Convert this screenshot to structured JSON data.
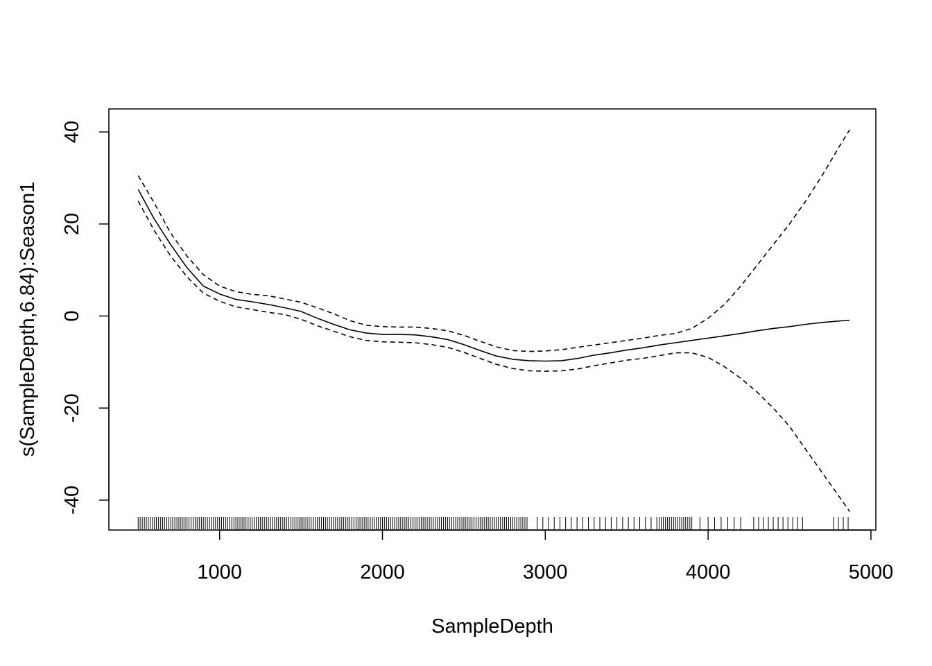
{
  "chart_data": {
    "type": "line",
    "title": "",
    "xlabel": "SampleDepth",
    "ylabel": "s(SampleDepth,6.84):Season1",
    "xlim": [
      320,
      5030
    ],
    "ylim": [
      -46.5,
      45
    ],
    "x_ticks": [
      1000,
      2000,
      3000,
      4000,
      5000
    ],
    "y_ticks": [
      -40,
      -20,
      0,
      20,
      40
    ],
    "grid": false,
    "legend": "none",
    "colors": {
      "line": "#000000",
      "background": "#ffffff"
    },
    "series": [
      {
        "style": "solid",
        "points": [
          [
            500,
            27.5
          ],
          [
            600,
            21
          ],
          [
            700,
            15.5
          ],
          [
            800,
            10.5
          ],
          [
            900,
            6.5
          ],
          [
            1000,
            4.8
          ],
          [
            1100,
            3.6
          ],
          [
            1200,
            3.1
          ],
          [
            1300,
            2.5
          ],
          [
            1400,
            1.8
          ],
          [
            1500,
            1.0
          ],
          [
            1600,
            -0.5
          ],
          [
            1700,
            -1.8
          ],
          [
            1800,
            -3.0
          ],
          [
            1900,
            -3.7
          ],
          [
            2000,
            -4.0
          ],
          [
            2100,
            -4.0
          ],
          [
            2200,
            -4.1
          ],
          [
            2300,
            -4.5
          ],
          [
            2400,
            -5.1
          ],
          [
            2500,
            -6.2
          ],
          [
            2600,
            -7.5
          ],
          [
            2700,
            -8.7
          ],
          [
            2800,
            -9.4
          ],
          [
            2900,
            -9.7
          ],
          [
            3000,
            -9.8
          ],
          [
            3100,
            -9.7
          ],
          [
            3200,
            -9.2
          ],
          [
            3300,
            -8.5
          ],
          [
            3400,
            -8.0
          ],
          [
            3500,
            -7.4
          ],
          [
            3600,
            -6.9
          ],
          [
            3700,
            -6.3
          ],
          [
            3800,
            -5.8
          ],
          [
            3900,
            -5.3
          ],
          [
            4000,
            -4.8
          ],
          [
            4100,
            -4.3
          ],
          [
            4200,
            -3.8
          ],
          [
            4300,
            -3.2
          ],
          [
            4400,
            -2.7
          ],
          [
            4500,
            -2.3
          ],
          [
            4600,
            -1.8
          ],
          [
            4700,
            -1.4
          ],
          [
            4800,
            -1.1
          ],
          [
            4870,
            -0.9
          ]
        ]
      },
      {
        "style": "dashed",
        "points": [
          [
            500,
            30.5
          ],
          [
            600,
            24.5
          ],
          [
            700,
            18
          ],
          [
            800,
            13
          ],
          [
            900,
            9
          ],
          [
            1000,
            6.5
          ],
          [
            1100,
            5.3
          ],
          [
            1200,
            4.7
          ],
          [
            1300,
            4.4
          ],
          [
            1400,
            3.7
          ],
          [
            1500,
            3.0
          ],
          [
            1600,
            1.8
          ],
          [
            1700,
            0.5
          ],
          [
            1800,
            -1.0
          ],
          [
            1900,
            -2.0
          ],
          [
            2000,
            -2.3
          ],
          [
            2100,
            -2.4
          ],
          [
            2200,
            -2.4
          ],
          [
            2300,
            -2.7
          ],
          [
            2400,
            -3.2
          ],
          [
            2500,
            -4.2
          ],
          [
            2600,
            -5.5
          ],
          [
            2700,
            -6.7
          ],
          [
            2800,
            -7.5
          ],
          [
            2900,
            -7.7
          ],
          [
            3000,
            -7.6
          ],
          [
            3100,
            -7.3
          ],
          [
            3200,
            -6.8
          ],
          [
            3300,
            -6.3
          ],
          [
            3400,
            -5.8
          ],
          [
            3500,
            -5.3
          ],
          [
            3600,
            -4.8
          ],
          [
            3700,
            -4.2
          ],
          [
            3800,
            -3.8
          ],
          [
            3900,
            -2.7
          ],
          [
            4000,
            -0.5
          ],
          [
            4100,
            2.5
          ],
          [
            4200,
            6.5
          ],
          [
            4300,
            11
          ],
          [
            4400,
            15.5
          ],
          [
            4500,
            20
          ],
          [
            4600,
            25
          ],
          [
            4700,
            30.5
          ],
          [
            4800,
            36.5
          ],
          [
            4870,
            40.5
          ]
        ]
      },
      {
        "style": "dashed",
        "points": [
          [
            500,
            25
          ],
          [
            600,
            18.5
          ],
          [
            700,
            13
          ],
          [
            800,
            8.5
          ],
          [
            900,
            5
          ],
          [
            1000,
            3.2
          ],
          [
            1100,
            2.0
          ],
          [
            1200,
            1.4
          ],
          [
            1300,
            0.8
          ],
          [
            1400,
            0.3
          ],
          [
            1500,
            -0.7
          ],
          [
            1600,
            -2.1
          ],
          [
            1700,
            -3.3
          ],
          [
            1800,
            -4.5
          ],
          [
            1900,
            -5.3
          ],
          [
            2000,
            -5.6
          ],
          [
            2100,
            -5.7
          ],
          [
            2200,
            -5.8
          ],
          [
            2300,
            -6.2
          ],
          [
            2400,
            -6.8
          ],
          [
            2500,
            -7.9
          ],
          [
            2600,
            -9.2
          ],
          [
            2700,
            -10.5
          ],
          [
            2800,
            -11.4
          ],
          [
            2900,
            -11.9
          ],
          [
            3000,
            -12.0
          ],
          [
            3100,
            -11.9
          ],
          [
            3200,
            -11.5
          ],
          [
            3300,
            -10.8
          ],
          [
            3400,
            -10.2
          ],
          [
            3500,
            -9.6
          ],
          [
            3600,
            -9.2
          ],
          [
            3700,
            -8.6
          ],
          [
            3800,
            -8.0
          ],
          [
            3900,
            -8.0
          ],
          [
            4000,
            -9.0
          ],
          [
            4100,
            -11
          ],
          [
            4200,
            -13.5
          ],
          [
            4300,
            -16.5
          ],
          [
            4400,
            -20
          ],
          [
            4500,
            -24
          ],
          [
            4600,
            -29
          ],
          [
            4700,
            -34
          ],
          [
            4800,
            -39
          ],
          [
            4870,
            -42.5
          ]
        ]
      }
    ],
    "rug": [
      500,
      512,
      525,
      538,
      550,
      562,
      575,
      588,
      600,
      612,
      625,
      638,
      650,
      662,
      675,
      688,
      700,
      712,
      725,
      738,
      750,
      762,
      775,
      788,
      800,
      812,
      825,
      838,
      850,
      862,
      875,
      888,
      900,
      912,
      925,
      938,
      950,
      962,
      975,
      988,
      1000,
      1012,
      1025,
      1038,
      1050,
      1062,
      1075,
      1088,
      1100,
      1112,
      1125,
      1138,
      1150,
      1162,
      1175,
      1188,
      1200,
      1212,
      1225,
      1238,
      1250,
      1262,
      1275,
      1288,
      1300,
      1312,
      1325,
      1338,
      1350,
      1362,
      1375,
      1388,
      1400,
      1412,
      1425,
      1438,
      1450,
      1462,
      1475,
      1488,
      1500,
      1512,
      1525,
      1538,
      1550,
      1562,
      1575,
      1588,
      1600,
      1612,
      1625,
      1638,
      1650,
      1662,
      1675,
      1688,
      1700,
      1712,
      1725,
      1738,
      1750,
      1762,
      1775,
      1788,
      1800,
      1812,
      1825,
      1838,
      1850,
      1862,
      1875,
      1888,
      1900,
      1912,
      1925,
      1938,
      1950,
      1962,
      1975,
      1988,
      2000,
      2012,
      2025,
      2038,
      2050,
      2062,
      2075,
      2088,
      2100,
      2112,
      2125,
      2138,
      2150,
      2162,
      2175,
      2188,
      2200,
      2212,
      2225,
      2238,
      2250,
      2262,
      2275,
      2288,
      2300,
      2312,
      2325,
      2338,
      2350,
      2362,
      2375,
      2388,
      2400,
      2412,
      2425,
      2438,
      2450,
      2462,
      2475,
      2488,
      2500,
      2512,
      2525,
      2538,
      2550,
      2562,
      2575,
      2588,
      2600,
      2612,
      2625,
      2638,
      2650,
      2662,
      2675,
      2688,
      2700,
      2712,
      2725,
      2738,
      2750,
      2762,
      2775,
      2788,
      2800,
      2812,
      2825,
      2838,
      2850,
      2862,
      2875,
      2888,
      2950,
      2985,
      3020,
      3055,
      3090,
      3125,
      3160,
      3195,
      3230,
      3265,
      3300,
      3335,
      3370,
      3405,
      3440,
      3475,
      3510,
      3545,
      3580,
      3615,
      3650,
      3685,
      3700,
      3712,
      3725,
      3738,
      3750,
      3762,
      3775,
      3788,
      3800,
      3812,
      3825,
      3838,
      3850,
      3862,
      3875,
      3888,
      3900,
      3950,
      4000,
      4040,
      4080,
      4120,
      4160,
      4200,
      4280,
      4310,
      4340,
      4370,
      4400,
      4430,
      4460,
      4490,
      4520,
      4550,
      4580,
      4770,
      4800,
      4830,
      4860
    ]
  }
}
